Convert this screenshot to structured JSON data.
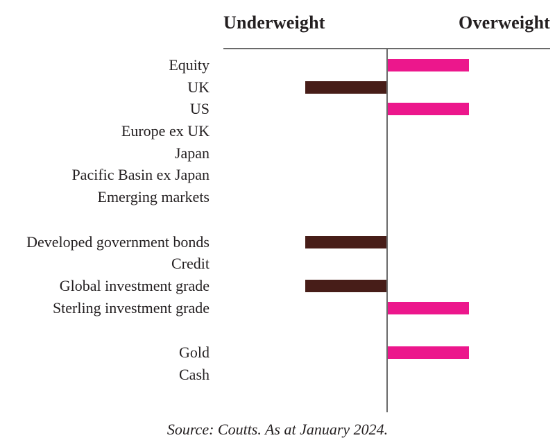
{
  "chart_data": {
    "type": "bar",
    "subtype": "diverging-horizontal",
    "title": "",
    "axis": {
      "left_label": "Underweight",
      "right_label": "Overweight"
    },
    "value_range": [
      -1,
      1
    ],
    "groups": [
      {
        "rows": [
          {
            "label": "Equity",
            "value": 1
          },
          {
            "label": "UK",
            "value": -1
          },
          {
            "label": "US",
            "value": 1
          },
          {
            "label": "Europe ex UK",
            "value": 0
          },
          {
            "label": "Japan",
            "value": 0
          },
          {
            "label": "Pacific Basin ex Japan",
            "value": 0
          },
          {
            "label": "Emerging markets",
            "value": 0
          }
        ]
      },
      {
        "rows": [
          {
            "label": "Developed government bonds",
            "value": -1
          },
          {
            "label": "Credit",
            "value": 0
          },
          {
            "label": "Global investment grade",
            "value": -1
          },
          {
            "label": "Sterling investment grade",
            "value": 1
          }
        ]
      },
      {
        "rows": [
          {
            "label": "Gold",
            "value": 1
          },
          {
            "label": "Cash",
            "value": 0
          }
        ]
      }
    ],
    "colors": {
      "overweight": "#EC178C",
      "underweight": "#471D18",
      "axis_line": "#6A6A6A",
      "text": "#231F20"
    },
    "legend_position": "none",
    "grid": false,
    "source": "Source: Coutts. As at January 2024."
  }
}
